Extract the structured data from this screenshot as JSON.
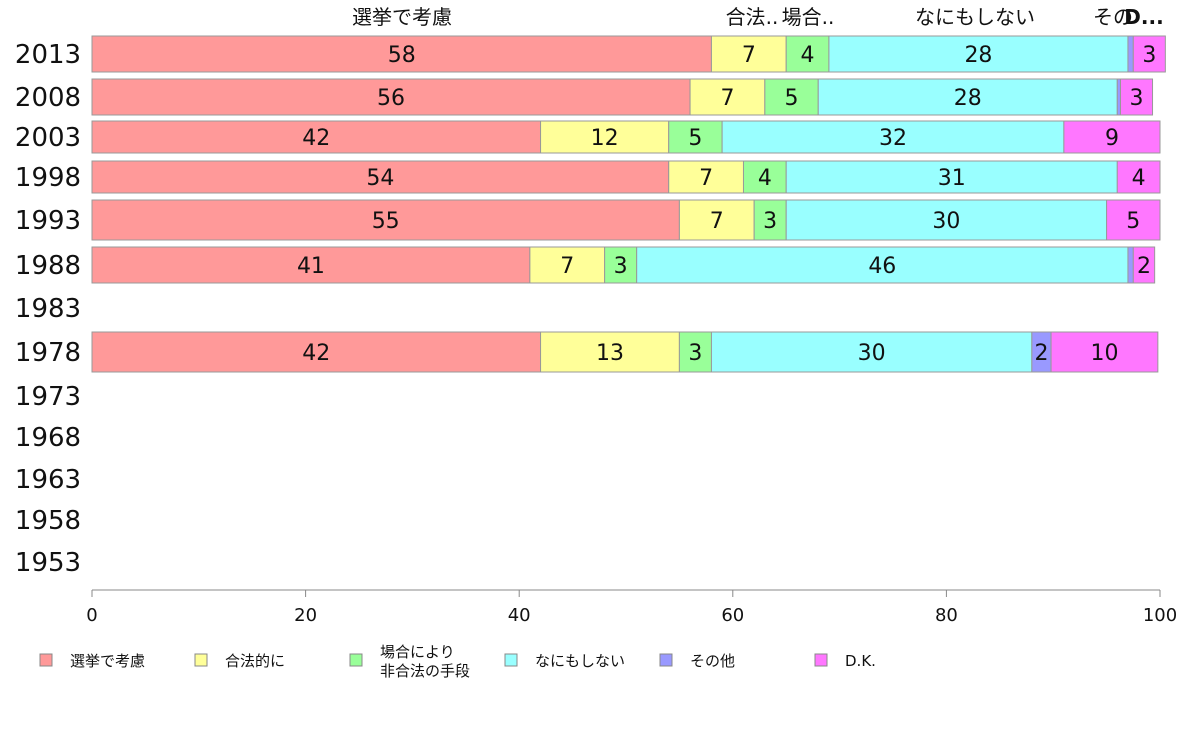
{
  "chart_data": {
    "type": "bar",
    "orientation": "horizontal",
    "stacked": true,
    "categories": [
      "2013",
      "2008",
      "2003",
      "1998",
      "1993",
      "1988",
      "1983",
      "1978",
      "1973",
      "1968",
      "1963",
      "1958",
      "1953"
    ],
    "series": [
      {
        "name": "選挙で考慮",
        "color": "#ff9999",
        "values": [
          58,
          56,
          42,
          54,
          55,
          41,
          null,
          42,
          null,
          null,
          null,
          null,
          null
        ]
      },
      {
        "name": "合法的に",
        "color": "#ffff99",
        "values": [
          7,
          7,
          12,
          7,
          7,
          7,
          null,
          13,
          null,
          null,
          null,
          null,
          null
        ]
      },
      {
        "name": "場合により\n非合法の手段",
        "color": "#99ff99",
        "values": [
          4,
          5,
          5,
          4,
          3,
          3,
          null,
          3,
          null,
          null,
          null,
          null,
          null
        ]
      },
      {
        "name": "なにもしない",
        "color": "#99ffff",
        "values": [
          28,
          28,
          32,
          31,
          30,
          46,
          null,
          30,
          null,
          null,
          null,
          null,
          null
        ]
      },
      {
        "name": "その他",
        "color": "#9999ff",
        "values": [
          0.5,
          0.3,
          0,
          0,
          0,
          0.5,
          null,
          1.8,
          null,
          null,
          null,
          null,
          null
        ]
      },
      {
        "name": "D.K.",
        "color": "#ff77ff",
        "values": [
          3,
          3,
          9,
          4,
          5,
          2,
          null,
          10,
          null,
          null,
          null,
          null,
          null
        ]
      }
    ],
    "labels": [
      [
        "58",
        "7",
        "4",
        "28",
        "",
        "3"
      ],
      [
        "56",
        "7",
        "5",
        "28",
        "",
        "3"
      ],
      [
        "42",
        "12",
        "5",
        "32",
        "",
        "9"
      ],
      [
        "54",
        "7",
        "4",
        "31",
        "",
        "4"
      ],
      [
        "55",
        "7",
        "3",
        "30",
        "",
        "5"
      ],
      [
        "41",
        "7",
        "3",
        "46",
        "",
        "2"
      ],
      [
        "",
        "",
        "",
        "",
        "",
        ""
      ],
      [
        "42",
        "13",
        "3",
        "30",
        "2",
        "10"
      ],
      [
        "",
        "",
        "",
        "",
        "",
        ""
      ],
      [
        "",
        "",
        "",
        "",
        "",
        ""
      ],
      [
        "",
        "",
        "",
        "",
        "",
        ""
      ],
      [
        "",
        "",
        "",
        "",
        "",
        ""
      ],
      [
        "",
        "",
        "",
        "",
        "",
        ""
      ]
    ],
    "header_labels": [
      "選挙で考慮",
      "合法..",
      "場合..",
      "なにもしない",
      "その",
      "D..."
    ],
    "xlim": [
      0,
      100
    ],
    "xticks": [
      "0",
      "20",
      "40",
      "60",
      "80",
      "100"
    ],
    "title": "",
    "xlabel": "",
    "ylabel": "",
    "grid": false,
    "legend_position": "bottom"
  }
}
